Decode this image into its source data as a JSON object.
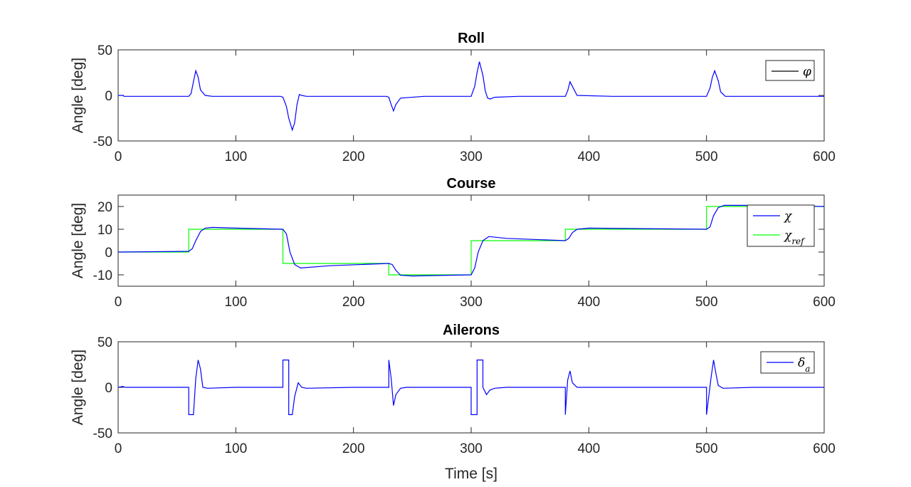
{
  "chart_data": [
    {
      "type": "line",
      "title": "Roll",
      "ylabel": "Angle [deg]",
      "xlabel": "",
      "xlim": [
        0,
        600
      ],
      "ylim": [
        -50,
        50
      ],
      "xticks": [
        0,
        100,
        200,
        300,
        400,
        500,
        600
      ],
      "yticks": [
        -50,
        0,
        50
      ],
      "grid": false,
      "legend_position": "top-right",
      "series": [
        {
          "name": "φ",
          "color": "#0000ff",
          "legend_color": "#000000",
          "x": [
            0,
            4,
            5,
            60,
            62,
            64,
            66,
            68,
            70,
            74,
            80,
            100,
            138,
            140,
            143,
            145,
            148,
            150,
            152,
            154,
            156,
            160,
            180,
            228,
            230,
            232,
            234,
            236,
            240,
            260,
            298,
            300,
            303,
            305,
            307,
            310,
            312,
            314,
            316,
            320,
            340,
            378,
            380,
            382,
            384,
            386,
            390,
            420,
            498,
            500,
            503,
            505,
            507,
            510,
            512,
            516,
            540,
            600
          ],
          "y": [
            0,
            0,
            -1,
            -1,
            2,
            15,
            27,
            20,
            6,
            0,
            -1,
            -1,
            -1,
            -2,
            -12,
            -25,
            -38,
            -30,
            -10,
            1,
            0,
            -1,
            -1,
            -1,
            -2,
            -10,
            -17,
            -10,
            -3,
            -1,
            -1,
            -1,
            10,
            25,
            37,
            22,
            5,
            -3,
            -4,
            -2,
            -1,
            -1,
            -1,
            5,
            15,
            10,
            0,
            -1,
            -1,
            -1,
            8,
            20,
            27,
            16,
            4,
            -1,
            -1,
            -1
          ]
        }
      ]
    },
    {
      "type": "line",
      "title": "Course",
      "ylabel": "Angle [deg]",
      "xlabel": "",
      "xlim": [
        0,
        600
      ],
      "ylim": [
        -15,
        25
      ],
      "xticks": [
        0,
        100,
        200,
        300,
        400,
        500,
        600
      ],
      "yticks": [
        -10,
        0,
        10,
        20
      ],
      "grid": false,
      "legend_position": "top-right",
      "series": [
        {
          "name": "χ",
          "color": "#0000ff",
          "x": [
            0,
            60,
            63,
            66,
            70,
            74,
            80,
            100,
            140,
            143,
            146,
            150,
            155,
            180,
            230,
            233,
            236,
            240,
            250,
            300,
            303,
            306,
            310,
            315,
            330,
            380,
            383,
            386,
            390,
            400,
            500,
            503,
            506,
            510,
            515,
            530,
            600
          ],
          "y": [
            0,
            0.3,
            1.5,
            5,
            9,
            10.5,
            10.8,
            10.5,
            10,
            8,
            0,
            -5.5,
            -7,
            -6,
            -5,
            -5.5,
            -8,
            -10.2,
            -10.5,
            -10,
            -7,
            0,
            5,
            6.8,
            6,
            5,
            6,
            8.5,
            10,
            10.5,
            10,
            11,
            16,
            19.5,
            20.5,
            20.5,
            20
          ]
        },
        {
          "name": "χ_ref",
          "color": "#00ff00",
          "x": [
            0,
            60,
            60,
            140,
            140,
            230,
            230,
            300,
            300,
            380,
            380,
            500,
            500,
            600
          ],
          "y": [
            0,
            0,
            10,
            10,
            -5,
            -5,
            -10,
            -10,
            5,
            5,
            10,
            10,
            20,
            20
          ]
        }
      ]
    },
    {
      "type": "line",
      "title": "Ailerons",
      "ylabel": "Angle [deg]",
      "xlabel": "Time [s]",
      "xlim": [
        0,
        600
      ],
      "ylim": [
        -50,
        50
      ],
      "xticks": [
        0,
        100,
        200,
        300,
        400,
        500,
        600
      ],
      "yticks": [
        -50,
        0,
        50
      ],
      "grid": false,
      "legend_position": "top-right",
      "series": [
        {
          "name": "δ_a",
          "color": "#0000ff",
          "x": [
            0,
            4,
            6,
            60,
            60,
            64,
            66,
            68,
            70,
            72,
            76,
            100,
            140,
            140,
            145,
            145,
            148,
            150,
            153,
            156,
            160,
            200,
            230,
            230,
            232,
            234,
            236,
            240,
            245,
            280,
            300,
            300,
            305,
            305,
            310,
            310,
            313,
            316,
            320,
            330,
            380,
            380,
            382,
            384,
            386,
            390,
            420,
            500,
            500,
            504,
            506,
            508,
            510,
            514,
            540,
            600
          ],
          "y": [
            0,
            1,
            0,
            0,
            -30,
            -30,
            10,
            30,
            20,
            0,
            -1,
            0,
            0,
            30,
            30,
            -30,
            -30,
            -10,
            5,
            0,
            -1,
            0,
            0,
            30,
            10,
            -20,
            -8,
            -1,
            0,
            0,
            0,
            -30,
            -30,
            30,
            30,
            0,
            -8,
            -3,
            -1,
            0,
            0,
            -30,
            8,
            18,
            5,
            0,
            0,
            0,
            -30,
            12,
            30,
            15,
            2,
            -1,
            0,
            0
          ]
        }
      ]
    }
  ]
}
